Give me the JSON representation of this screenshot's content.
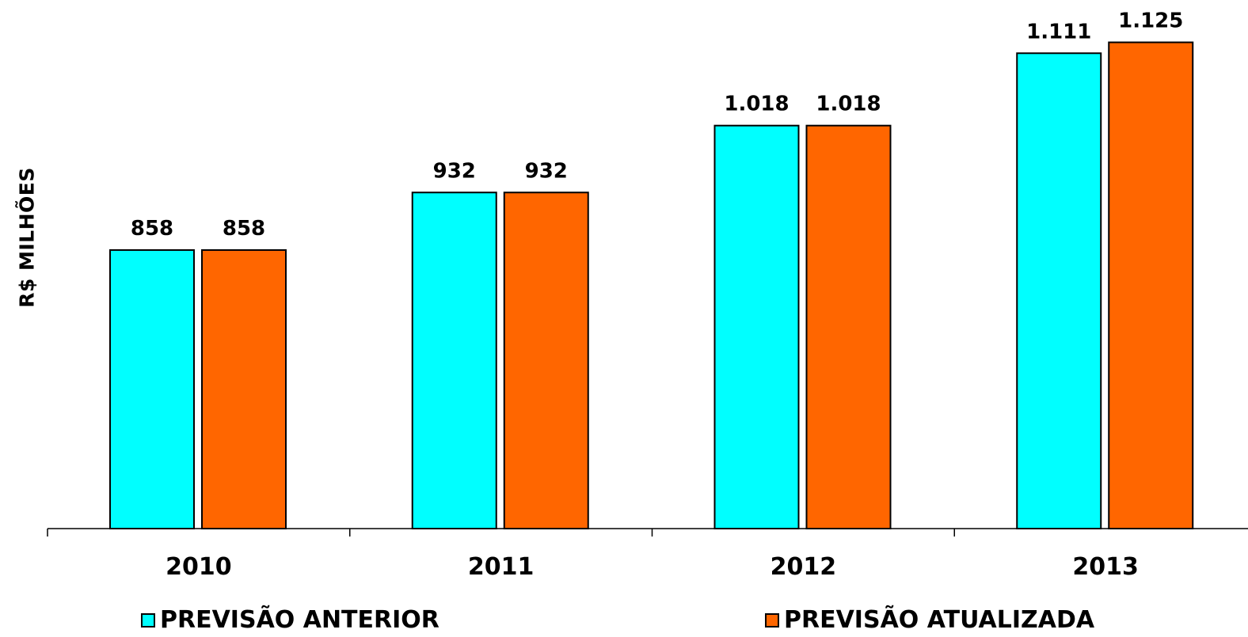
{
  "chart_data": {
    "type": "bar",
    "categories": [
      "2010",
      "2011",
      "2012",
      "2013"
    ],
    "series": [
      {
        "name": "PREVISÃO ANTERIOR",
        "color": "#00FFFF",
        "values": [
          858,
          932,
          1018,
          1111
        ],
        "labels": [
          "858",
          "932",
          "1.018",
          "1.111"
        ]
      },
      {
        "name": "PREVISÃO ATUALIZADA",
        "color": "#FF6600",
        "values": [
          858,
          932,
          1018,
          1125
        ],
        "labels": [
          "858",
          "932",
          "1.018",
          "1.125"
        ]
      }
    ],
    "ylabel": "R$ MILHÕES",
    "xlabel": "",
    "ylim": [
      500,
      1125
    ],
    "grid": false,
    "legend_position": "bottom"
  }
}
